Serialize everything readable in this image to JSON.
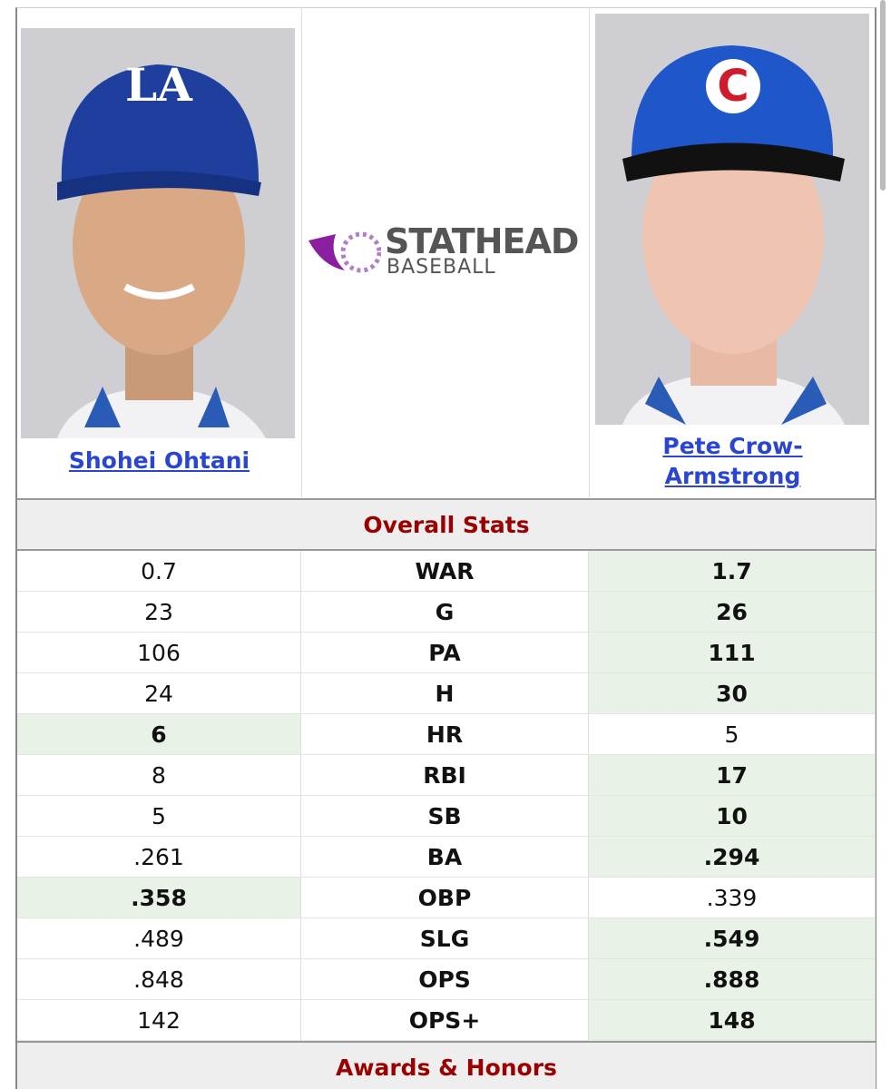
{
  "players": [
    {
      "name": "Shohei Ohtani"
    },
    {
      "name": "Pete Crow-Armstrong"
    }
  ],
  "logo": {
    "brand": "STATHEAD",
    "sport": "BASEBALL"
  },
  "sections": [
    {
      "title": "Overall Stats",
      "rows": [
        {
          "stat": "WAR",
          "values": [
            "0.7",
            "1.7"
          ],
          "leader": "right"
        },
        {
          "stat": "G",
          "values": [
            "23",
            "26"
          ],
          "leader": "right"
        },
        {
          "stat": "PA",
          "values": [
            "106",
            "111"
          ],
          "leader": "right"
        },
        {
          "stat": "H",
          "values": [
            "24",
            "30"
          ],
          "leader": "right"
        },
        {
          "stat": "HR",
          "values": [
            "6",
            "5"
          ],
          "leader": "left"
        },
        {
          "stat": "RBI",
          "values": [
            "8",
            "17"
          ],
          "leader": "right"
        },
        {
          "stat": "SB",
          "values": [
            "5",
            "10"
          ],
          "leader": "right"
        },
        {
          "stat": "BA",
          "values": [
            ".261",
            ".294"
          ],
          "leader": "right"
        },
        {
          "stat": "OBP",
          "values": [
            ".358",
            ".339"
          ],
          "leader": "left"
        },
        {
          "stat": "SLG",
          "values": [
            ".489",
            ".549"
          ],
          "leader": "right"
        },
        {
          "stat": "OPS",
          "values": [
            ".848",
            ".888"
          ],
          "leader": "right"
        },
        {
          "stat": "OPS+",
          "values": [
            "142",
            "148"
          ],
          "leader": "right"
        }
      ]
    },
    {
      "title": "Awards & Honors"
    }
  ]
}
